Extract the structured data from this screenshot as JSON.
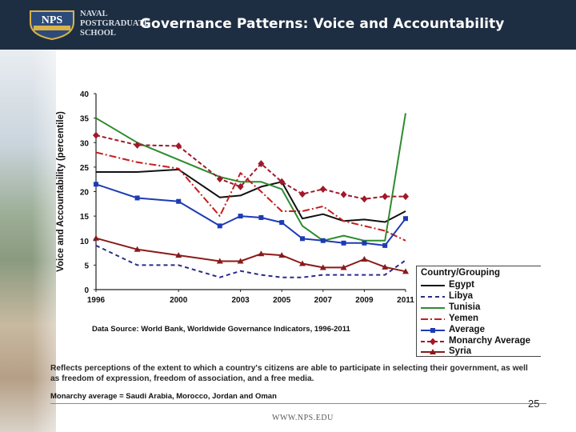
{
  "header": {
    "title": "Governance Patterns: Voice and Accountability",
    "school_lines": [
      "NAVAL",
      "POSTGRADUATE",
      "SCHOOL"
    ],
    "logo_text": "NPS",
    "colors": {
      "bar": "#1e2e42",
      "text": "#ffffff"
    }
  },
  "chart_data": {
    "type": "line",
    "ylabel": "Voice and Accountability (percentile)",
    "xlabel": "",
    "ylim": [
      0,
      40
    ],
    "y_ticks": [
      0,
      5,
      10,
      15,
      20,
      25,
      30,
      35,
      40
    ],
    "x_tick_labels": [
      "1996",
      "2000",
      "2003",
      "2005",
      "2007",
      "2009",
      "2011"
    ],
    "x": [
      1996,
      1998,
      2000,
      2002,
      2003,
      2004,
      2005,
      2006,
      2007,
      2008,
      2009,
      2010,
      2011
    ],
    "series": [
      {
        "name": "Egypt",
        "color": "#111111",
        "dash": "",
        "marker": "none",
        "values": [
          24,
          24,
          24.5,
          18.8,
          19.2,
          21,
          22,
          14.5,
          15.4,
          14,
          14.3,
          13.8,
          16
        ]
      },
      {
        "name": "Libya",
        "color": "#2b2b8a",
        "dash": "5,4",
        "marker": "none",
        "values": [
          9,
          5,
          5,
          2.5,
          3.8,
          3,
          2.5,
          2.5,
          3,
          3,
          3,
          3,
          6
        ]
      },
      {
        "name": "Tunisia",
        "color": "#2e8b2e",
        "dash": "",
        "marker": "none",
        "values": [
          35,
          30,
          26.5,
          23,
          22,
          22,
          20.5,
          13,
          10,
          11,
          10,
          10,
          36
        ]
      },
      {
        "name": "Yemen",
        "color": "#c41e1e",
        "dash": "9,3,2,3",
        "marker": "none",
        "values": [
          28,
          26,
          24.7,
          15,
          23.8,
          20,
          16,
          16,
          17,
          14,
          13,
          12,
          10
        ]
      },
      {
        "name": "Average",
        "color": "#1e3bb4",
        "dash": "",
        "marker": "square",
        "values": [
          21.5,
          18.7,
          18,
          13,
          15,
          14.7,
          13.7,
          10.4,
          10,
          9.5,
          9.5,
          9,
          14.5
        ]
      },
      {
        "name": "Monarchy Average",
        "color": "#a0182a",
        "dash": "5,3",
        "marker": "star",
        "values": [
          31.5,
          29.5,
          29.3,
          22.6,
          21,
          25.7,
          22,
          19.5,
          20.5,
          19.4,
          18.5,
          19,
          19
        ]
      },
      {
        "name": "Syria",
        "color": "#8a1a1a",
        "dash": "",
        "marker": "triangle",
        "values": [
          10.5,
          8.2,
          7,
          5.8,
          5.8,
          7.3,
          7,
          5.3,
          4.5,
          4.5,
          6.2,
          4.6,
          3.7
        ]
      }
    ],
    "legend_title": "Country/Grouping",
    "legend_position": "bottom-right"
  },
  "notes": {
    "source": "Data Source: World Bank, Worldwide Governance Indicators, 1996-2011",
    "reflects": "Reflects perceptions of the extent to which a country's citizens are able to participate in selecting their government, as well as freedom of expression, freedom of association, and a free media.",
    "monarchy": "Monarchy average = Saudi Arabia, Morocco, Jordan and Oman"
  },
  "footer": {
    "page": "25",
    "url": "WWW.NPS.EDU"
  }
}
